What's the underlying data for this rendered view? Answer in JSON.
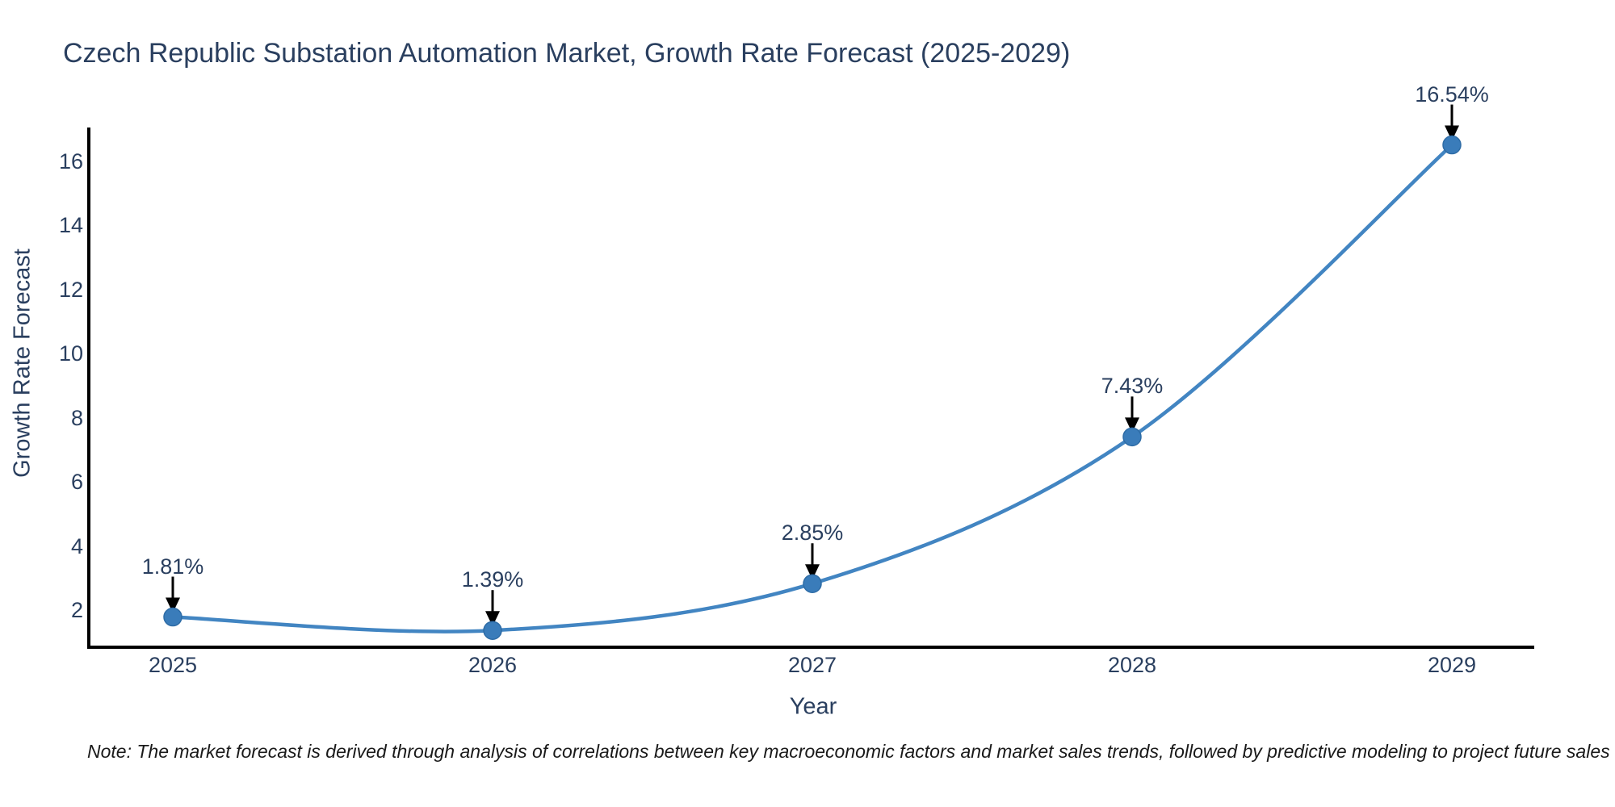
{
  "title": {
    "text": "Czech Republic Substation Automation Market, Growth Rate Forecast (2025-2029)"
  },
  "note": {
    "text": "Note: The market forecast is derived through analysis of correlations between key macroeconomic factors and market sales trends, followed by predictive modeling to project future sales"
  },
  "chart_data": {
    "type": "line",
    "line_shape": "spline",
    "title": "Czech Republic Substation Automation Market, Growth Rate Forecast (2025-2029)",
    "xlabel": "Year",
    "ylabel": "Growth Rate Forecast",
    "categories": [
      "2025",
      "2026",
      "2027",
      "2028",
      "2029"
    ],
    "series": [
      {
        "name": "Growth Rate Forecast",
        "values": [
          1.81,
          1.39,
          2.85,
          7.43,
          16.54
        ]
      }
    ],
    "point_labels": [
      "1.81%",
      "1.39%",
      "2.85%",
      "7.43%",
      "16.54%"
    ],
    "yticks": [
      2,
      4,
      6,
      8,
      10,
      12,
      14,
      16
    ],
    "ylim": [
      0.87,
      17.1
    ],
    "grid": false,
    "legend": "none",
    "markers": "circle",
    "annotation_arrows": true,
    "colors": {
      "line": "#4285c2",
      "marker_fill": "#3a7cba",
      "marker_stroke": "#2e6ca6",
      "arrow": "#000000",
      "axis_line": "#000000",
      "tick_text": "#2a3f5f",
      "label_text": "#2a3f5f",
      "title_text": "#2a3f5f",
      "note_text": "#1a1a1a",
      "background": "#ffffff"
    }
  }
}
